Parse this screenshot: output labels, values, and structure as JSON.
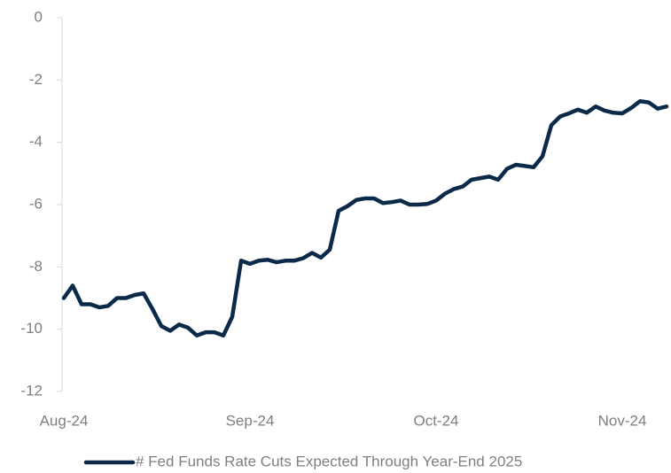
{
  "chart_data": {
    "type": "line",
    "categories": [
      "Aug-24",
      null,
      null,
      null,
      null,
      null,
      null,
      null,
      null,
      null,
      null,
      null,
      null,
      null,
      null,
      null,
      null,
      null,
      null,
      null,
      null,
      "Sep-24",
      null,
      null,
      null,
      null,
      null,
      null,
      null,
      null,
      null,
      null,
      null,
      null,
      null,
      null,
      null,
      null,
      null,
      null,
      null,
      null,
      "Oct-24",
      null,
      null,
      null,
      null,
      null,
      null,
      null,
      null,
      null,
      null,
      null,
      null,
      null,
      null,
      null,
      null,
      null,
      null,
      null,
      null,
      "Nov-24",
      null,
      null,
      null,
      null,
      null
    ],
    "series": [
      {
        "name": "# Fed Funds Rate Cuts Expected Through Year-End 2025",
        "color": "#0b2a4a",
        "values": [
          -9.0,
          -8.6,
          -9.2,
          -9.2,
          -9.3,
          -9.25,
          -9.0,
          -9.0,
          -8.9,
          -8.85,
          -9.35,
          -9.9,
          -10.05,
          -9.85,
          -9.95,
          -10.2,
          -10.1,
          -10.1,
          -10.2,
          -9.6,
          -7.8,
          -7.9,
          -7.8,
          -7.77,
          -7.85,
          -7.8,
          -7.8,
          -7.72,
          -7.55,
          -7.7,
          -7.45,
          -6.2,
          -6.05,
          -5.85,
          -5.8,
          -5.8,
          -5.95,
          -5.92,
          -5.87,
          -6.0,
          -6.0,
          -5.98,
          -5.87,
          -5.65,
          -5.5,
          -5.42,
          -5.2,
          -5.15,
          -5.1,
          -5.2,
          -4.85,
          -4.72,
          -4.76,
          -4.8,
          -4.45,
          -3.45,
          -3.17,
          -3.07,
          -2.95,
          -3.05,
          -2.85,
          -2.98,
          -3.05,
          -3.07,
          -2.9,
          -2.68,
          -2.72,
          -2.92,
          -2.85
        ]
      }
    ],
    "ylim": [
      -12,
      0
    ],
    "yticks": [
      -12,
      -10,
      -8,
      -6,
      -4,
      -2,
      0
    ],
    "grid": false,
    "legend": "bottom"
  }
}
